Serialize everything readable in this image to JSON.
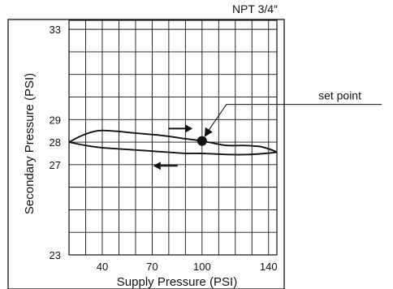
{
  "chart_data": {
    "type": "line",
    "title": "NPT 3/4″",
    "xlabel": "Supply Pressure (PSI)",
    "ylabel": "Secondary Pressure (PSI)",
    "xlim": [
      20,
      145
    ],
    "ylim": [
      23,
      33.4
    ],
    "x_ticks": [
      40,
      70,
      100,
      140
    ],
    "y_ticks": [
      23,
      27,
      28,
      29,
      33
    ],
    "grid": true,
    "series": [
      {
        "direction": "increasing",
        "x": [
          20,
          28,
          37,
          45,
          60,
          75,
          90,
          100,
          107,
          115,
          125,
          135,
          142,
          145
        ],
        "y": [
          28.0,
          28.3,
          28.5,
          28.5,
          28.4,
          28.3,
          28.15,
          28.05,
          27.95,
          27.85,
          27.85,
          27.8,
          27.65,
          27.55
        ]
      },
      {
        "direction": "decreasing",
        "x": [
          145,
          138,
          128,
          115,
          100,
          90,
          80,
          70,
          60,
          50,
          40,
          30,
          20
        ],
        "y": [
          27.55,
          27.5,
          27.45,
          27.45,
          27.5,
          27.5,
          27.55,
          27.6,
          27.65,
          27.7,
          27.75,
          27.85,
          28.0
        ]
      }
    ],
    "set_point": {
      "x": 100,
      "y": 28.05,
      "label": "set point"
    },
    "arrows": [
      {
        "direction": "right",
        "x": 87,
        "y": 28.6
      },
      {
        "direction": "left",
        "x": 78,
        "y": 26.95
      }
    ]
  }
}
